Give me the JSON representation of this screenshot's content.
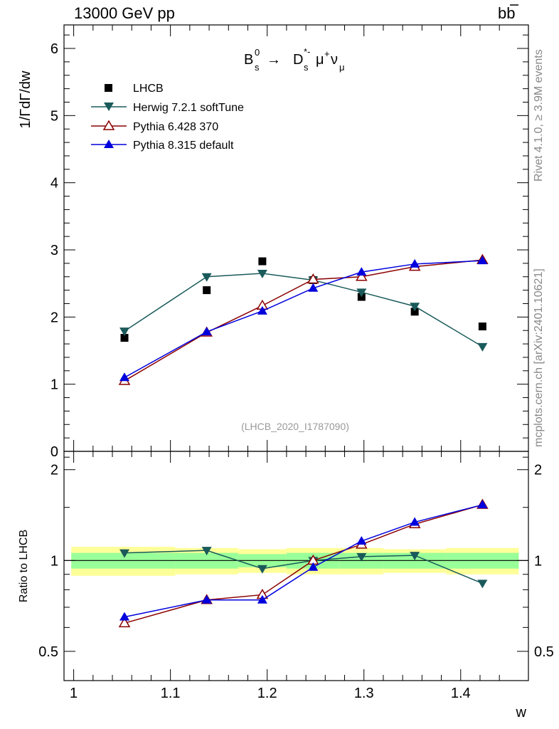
{
  "header": {
    "energy_label": "13000 GeV pp",
    "process_main": "b",
    "process_bar": "b"
  },
  "plot_title": {
    "B": "B",
    "B_sub": "s",
    "B_sup": "0",
    "arrow": "→",
    "D": "D",
    "D_sub": "s",
    "D_sup": "*-",
    "mu": "μ",
    "mu_sup": "+",
    "nu": "ν",
    "nu_sub": "μ"
  },
  "side_labels": {
    "rivet": "Rivet 4.1.0, ≥ 3.9M events",
    "mcplots": "mcplots.cern.ch [arXiv:2401.10621]"
  },
  "analysis_id": "(LHCB_2020_I1787090)",
  "colors": {
    "lhcb": "#000000",
    "herwig": "#1a5a5a",
    "pythia6": "#8b0000",
    "pythia8": "#0000dd",
    "band_inner": "#99ff99",
    "band_outer": "#ffff99"
  },
  "chart_data": [
    {
      "type": "line",
      "panel": "main",
      "ylabel": "1/ΓdΓ/dw",
      "xlim": [
        0.99,
        1.47
      ],
      "ylim": [
        0,
        6.35
      ],
      "yticks": [
        0,
        1,
        2,
        3,
        4,
        5,
        6
      ],
      "ytick_labels": [
        "0",
        "1",
        "2",
        "3",
        "4",
        "5",
        "6"
      ],
      "x": [
        1.0525,
        1.1375,
        1.195,
        1.2475,
        1.2975,
        1.3525,
        1.4225
      ],
      "data_xerr": [
        0.0525,
        0.0325,
        0.025,
        0.0275,
        0.0225,
        0.0325,
        0.0375
      ],
      "legend": [
        {
          "name": "LHCB",
          "marker": "square"
        },
        {
          "name": "Herwig 7.2.1 softTune",
          "marker": "triangle-down"
        },
        {
          "name": "Pythia 6.428 370",
          "marker": "triangle-up-open"
        },
        {
          "name": "Pythia 8.315 default",
          "marker": "triangle-up"
        }
      ],
      "series": [
        {
          "name": "LHCB",
          "values": [
            1.69,
            2.4,
            2.83,
            2.55,
            2.3,
            2.08,
            1.86
          ]
        },
        {
          "name": "Herwig 7.2.1 softTune",
          "values": [
            1.79,
            2.6,
            2.65,
            2.55,
            2.37,
            2.16,
            1.56
          ]
        },
        {
          "name": "Pythia 6.428 370",
          "values": [
            1.05,
            1.77,
            2.17,
            2.56,
            2.6,
            2.75,
            2.85
          ]
        },
        {
          "name": "Pythia 8.315 default",
          "values": [
            1.1,
            1.78,
            2.09,
            2.43,
            2.67,
            2.79,
            2.84
          ]
        }
      ]
    },
    {
      "type": "line",
      "panel": "ratio",
      "xlabel": "w",
      "ylabel": "Ratio to LHCB",
      "xlim": [
        0.99,
        1.47
      ],
      "ylim": [
        0.4,
        2.3
      ],
      "ylog": true,
      "xticks": [
        1.0,
        1.1,
        1.2,
        1.3,
        1.4
      ],
      "xtick_labels": [
        "1",
        "1.1",
        "1.2",
        "1.3",
        "1.4"
      ],
      "yticks": [
        0.5,
        1,
        2
      ],
      "ytick_labels": [
        "0.5",
        "1",
        "2"
      ],
      "x": [
        1.0525,
        1.1375,
        1.195,
        1.2475,
        1.2975,
        1.3525,
        1.4225
      ],
      "band_xlo": [
        0.9975,
        1.105,
        1.17,
        1.22,
        1.275,
        1.32,
        1.385
      ],
      "band_xhi": [
        1.105,
        1.17,
        1.22,
        1.275,
        1.32,
        1.385,
        1.46
      ],
      "band_stat": [
        0.06,
        0.06,
        0.05,
        0.06,
        0.06,
        0.06,
        0.06
      ],
      "band_total": [
        0.11,
        0.1,
        0.09,
        0.1,
        0.1,
        0.09,
        0.1
      ],
      "series": [
        {
          "name": "Herwig 7.2.1 softTune",
          "values": [
            1.06,
            1.08,
            0.94,
            1.0,
            1.03,
            1.04,
            0.84
          ]
        },
        {
          "name": "Pythia 6.428 370",
          "values": [
            0.62,
            0.74,
            0.77,
            1.0,
            1.13,
            1.32,
            1.53
          ]
        },
        {
          "name": "Pythia 8.315 default",
          "values": [
            0.65,
            0.74,
            0.74,
            0.95,
            1.16,
            1.34,
            1.53
          ]
        }
      ]
    }
  ]
}
